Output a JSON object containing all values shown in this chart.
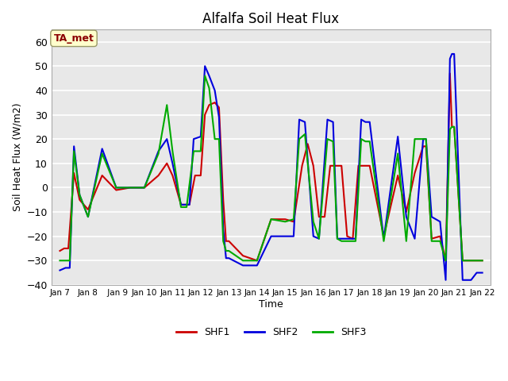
{
  "title": "Alfalfa Soil Heat Flux",
  "xlabel": "Time",
  "ylabel": "Soil Heat Flux (W/m2)",
  "ylim": [
    -40,
    65
  ],
  "background_color": "#e8e8e8",
  "grid_color": "white",
  "annotation_text": "TA_met",
  "annotation_color": "#8B0000",
  "annotation_bg": "#ffffcc",
  "x_tick_labels": [
    "Jan 7",
    "Jan 8",
    " Jan 9",
    "Jan 10",
    "Jan 11",
    "Jan 12",
    "Jan 13",
    "Jan 14",
    "Jan 15",
    "Jan 16",
    "Jan 17",
    "Jan 18",
    "Jan 19",
    "Jan 20",
    "Jan 21",
    "Jan 22"
  ],
  "shf1_color": "#cc0000",
  "shf2_color": "#0000dd",
  "shf3_color": "#00aa00",
  "shf1_x": [
    0.0,
    0.15,
    0.3,
    0.5,
    0.7,
    1.0,
    1.0,
    1.5,
    2.0,
    2.5,
    3.0,
    3.5,
    3.5,
    3.8,
    4.0,
    4.3,
    4.6,
    4.8,
    4.8,
    5.0,
    5.15,
    5.3,
    5.5,
    5.65,
    5.8,
    5.9,
    5.9,
    6.0,
    6.5,
    7.0,
    7.0,
    7.5,
    8.0,
    8.0,
    8.3,
    8.6,
    8.8,
    9.0,
    9.0,
    9.2,
    9.4,
    9.6,
    9.8,
    10.0,
    10.0,
    10.2,
    10.4,
    10.6,
    10.8,
    11.0,
    11.0,
    11.5,
    12.0,
    12.0,
    12.3,
    12.6,
    12.9,
    13.0,
    13.0,
    13.2,
    13.5,
    13.7,
    13.85,
    13.92,
    14.0,
    14.0,
    14.3,
    14.6,
    14.8,
    15.0
  ],
  "shf1_y": [
    -26,
    -25,
    -25,
    6,
    -5,
    -9,
    -9,
    5,
    -1,
    0,
    0,
    5,
    5,
    10,
    5,
    -7,
    -7,
    5,
    5,
    5,
    30,
    34,
    35,
    33,
    -5,
    -22,
    -22,
    -22,
    -28,
    -30,
    -30,
    -13,
    -13,
    -13,
    -14,
    9,
    18,
    9,
    9,
    -12,
    -12,
    9,
    9,
    9,
    9,
    -20,
    -21,
    9,
    9,
    9,
    9,
    -20,
    5,
    5,
    -10,
    6,
    17,
    17,
    17,
    -21,
    -20,
    -30,
    47,
    25,
    25,
    25,
    -30,
    -30,
    -30,
    -30
  ],
  "shf2_x": [
    0.0,
    0.2,
    0.35,
    0.5,
    0.7,
    1.0,
    1.0,
    1.5,
    2.0,
    2.5,
    3.0,
    3.5,
    3.5,
    3.8,
    4.0,
    4.3,
    4.6,
    4.75,
    4.75,
    5.0,
    5.15,
    5.3,
    5.5,
    5.65,
    5.8,
    5.9,
    5.9,
    6.0,
    6.5,
    7.0,
    7.0,
    7.5,
    8.0,
    8.0,
    8.3,
    8.5,
    8.7,
    9.0,
    9.0,
    9.2,
    9.5,
    9.7,
    9.85,
    10.0,
    10.0,
    10.2,
    10.5,
    10.7,
    10.85,
    11.0,
    11.0,
    11.5,
    12.0,
    12.0,
    12.3,
    12.6,
    12.9,
    13.0,
    13.0,
    13.2,
    13.5,
    13.7,
    13.85,
    13.92,
    14.0,
    14.0,
    14.3,
    14.6,
    14.8,
    15.0
  ],
  "shf2_y": [
    -34,
    -33,
    -33,
    17,
    -3,
    -12,
    -12,
    16,
    0,
    0,
    0,
    15,
    15,
    20,
    10,
    -7,
    -7,
    20,
    20,
    21,
    50,
    46,
    40,
    29,
    -17,
    -29,
    -29,
    -29,
    -32,
    -32,
    -32,
    -20,
    -20,
    -20,
    -20,
    28,
    27,
    -20,
    -20,
    -21,
    28,
    27,
    -21,
    -21,
    -21,
    -21,
    -21,
    28,
    27,
    27,
    27,
    -21,
    21,
    21,
    -12,
    -21,
    20,
    20,
    20,
    -12,
    -14,
    -38,
    53,
    55,
    55,
    55,
    -38,
    -38,
    -35,
    -35
  ],
  "shf3_x": [
    0.0,
    0.2,
    0.35,
    0.5,
    0.7,
    1.0,
    1.0,
    1.5,
    2.0,
    2.5,
    3.0,
    3.5,
    3.5,
    3.8,
    4.0,
    4.3,
    4.5,
    4.75,
    4.75,
    5.0,
    5.15,
    5.3,
    5.5,
    5.65,
    5.8,
    5.9,
    5.9,
    6.0,
    6.5,
    7.0,
    7.0,
    7.5,
    8.0,
    8.0,
    8.3,
    8.5,
    8.7,
    9.0,
    9.0,
    9.2,
    9.5,
    9.7,
    9.85,
    10.0,
    10.0,
    10.2,
    10.5,
    10.7,
    10.85,
    11.0,
    11.0,
    11.5,
    12.0,
    12.0,
    12.3,
    12.6,
    12.9,
    13.0,
    13.0,
    13.2,
    13.5,
    13.7,
    13.85,
    13.92,
    14.0,
    14.0,
    14.3,
    14.6,
    14.8,
    15.0
  ],
  "shf3_y": [
    -30,
    -30,
    -30,
    15,
    -3,
    -12,
    -12,
    14,
    0,
    0,
    0,
    14,
    14,
    34,
    15,
    -8,
    -8,
    15,
    15,
    15,
    46,
    41,
    20,
    20,
    -22,
    -26,
    -26,
    -26,
    -30,
    -30,
    -30,
    -13,
    -14,
    -14,
    -13,
    20,
    22,
    -14,
    -14,
    -21,
    20,
    19,
    -21,
    -22,
    -22,
    -22,
    -22,
    20,
    19,
    19,
    19,
    -22,
    14,
    14,
    -22,
    20,
    20,
    20,
    20,
    -22,
    -22,
    -30,
    24,
    25,
    25,
    25,
    -30,
    -30,
    -30,
    -30
  ]
}
